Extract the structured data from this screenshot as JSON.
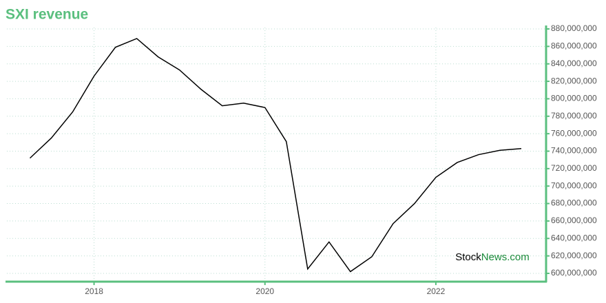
{
  "chart_data": {
    "type": "line",
    "title": "SXI revenue",
    "x": [
      2017.25,
      2017.5,
      2017.75,
      2018,
      2018.25,
      2018.5,
      2018.75,
      2019,
      2019.25,
      2019.5,
      2019.75,
      2020,
      2020.25,
      2020.5,
      2020.75,
      2021,
      2021.25,
      2021.5,
      2021.75,
      2022,
      2022.25,
      2022.5,
      2022.75,
      2023
    ],
    "series": [
      {
        "name": "SXI revenue",
        "color": "#000000",
        "values": [
          732000000,
          755000000,
          785000000,
          826000000,
          859000000,
          869000000,
          848000000,
          833000000,
          811000000,
          792000000,
          795000000,
          790000000,
          751000000,
          605000000,
          636000000,
          602000000,
          619000000,
          657000000,
          680000000,
          710000000,
          727000000,
          736000000,
          741000000,
          743000000
        ]
      }
    ],
    "xlim": [
      2016.98,
      2023.29
    ],
    "xticks": [
      2018,
      2020,
      2022
    ],
    "ylim": [
      590500000,
      881600000
    ],
    "yticks": [
      {
        "value": 600000000,
        "label": "600,000,000"
      },
      {
        "value": 620000000,
        "label": "620,000,000"
      },
      {
        "value": 640000000,
        "label": "640,000,000"
      },
      {
        "value": 660000000,
        "label": "660,000,000"
      },
      {
        "value": 680000000,
        "label": "680,000,000"
      },
      {
        "value": 700000000,
        "label": "700,000,000"
      },
      {
        "value": 720000000,
        "label": "720,000,000"
      },
      {
        "value": 740000000,
        "label": "740,000,000"
      },
      {
        "value": 760000000,
        "label": "760,000,000"
      },
      {
        "value": 780000000,
        "label": "780,000,000"
      },
      {
        "value": 800000000,
        "label": "800,000,000"
      },
      {
        "value": 820000000,
        "label": "820,000,000"
      },
      {
        "value": 840000000,
        "label": "840,000,000"
      },
      {
        "value": 860000000,
        "label": "860,000,000"
      },
      {
        "value": 880000000,
        "label": "880,000,000"
      }
    ],
    "grid": true,
    "axis_color": "#5abf7e",
    "watermark": [
      "Stock",
      "News.com"
    ]
  }
}
